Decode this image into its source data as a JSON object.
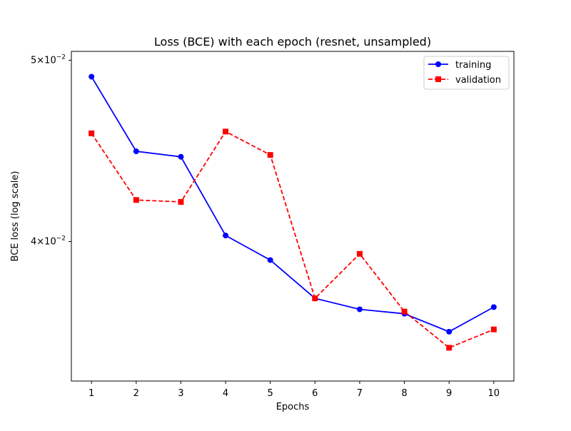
{
  "chart_data": {
    "type": "line",
    "title": "Loss (BCE) with each epoch (resnet, unsampled)",
    "xlabel": "Epochs",
    "ylabel": "BCE loss (log scale)",
    "yscale": "log",
    "grid": false,
    "legend_position": "top-right",
    "x": [
      1,
      2,
      3,
      4,
      5,
      6,
      7,
      8,
      9,
      10
    ],
    "xlim": [
      0.55,
      10.45
    ],
    "ylim": [
      0.03369,
      0.05055
    ],
    "yticks": [
      {
        "value": 0.05,
        "mantissa": "5",
        "base": "10",
        "exp": "−2"
      },
      {
        "value": 0.04,
        "mantissa": "4",
        "base": "10",
        "exp": "−2"
      }
    ],
    "series": [
      {
        "name": "training",
        "color": "#0000ff",
        "linestyle": "solid",
        "marker": "circle",
        "values": [
          0.049,
          0.0447,
          0.0444,
          0.0403,
          0.0391,
          0.0373,
          0.0368,
          0.0366,
          0.0358,
          0.0369
        ]
      },
      {
        "name": "validation",
        "color": "#ff0000",
        "linestyle": "dashed",
        "marker": "square",
        "values": [
          0.0457,
          0.0421,
          0.042,
          0.0458,
          0.0445,
          0.0373,
          0.0394,
          0.0367,
          0.0351,
          0.0359
        ]
      }
    ]
  }
}
